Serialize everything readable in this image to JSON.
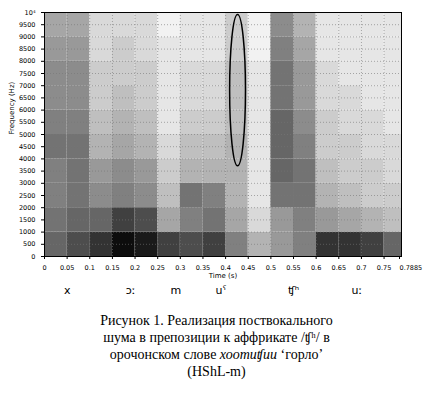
{
  "chart_data": {
    "type": "spectrogram",
    "x_label": "Time (s)",
    "y_label": "Frequency (Hz)",
    "xlim": [
      0,
      0.7885
    ],
    "ylim": [
      0,
      10000
    ],
    "xticks": [
      0,
      0.05,
      0.1,
      0.15,
      0.2,
      0.25,
      0.3,
      0.35,
      0.4,
      0.45,
      0.5,
      0.55,
      0.6,
      0.65,
      0.7,
      0.75,
      0.7885
    ],
    "yticks": [
      0,
      500,
      1000,
      1500,
      2000,
      2500,
      3000,
      3500,
      4000,
      4500,
      5000,
      5500,
      6000,
      6500,
      7000,
      7500,
      8000,
      8500,
      9000,
      9500,
      {
        "value": 10000,
        "label": "10⁴"
      }
    ],
    "grid": true,
    "time_bins": [
      0,
      0.05,
      0.1,
      0.15,
      0.2,
      0.25,
      0.3,
      0.35,
      0.4,
      0.45,
      0.5,
      0.55,
      0.6,
      0.65,
      0.7,
      0.75,
      0.7885
    ],
    "frequency_bins": [
      0,
      1000,
      2000,
      3000,
      4000,
      5000,
      6000,
      7000,
      8000,
      9000,
      10000
    ],
    "intensity_range": [
      0,
      1
    ],
    "intensity": [
      [
        0.6,
        0.7,
        0.8,
        0.95,
        0.9,
        0.75,
        0.7,
        0.75,
        0.5,
        0.3,
        0.4,
        0.5,
        0.8,
        0.8,
        0.75,
        0.6
      ],
      [
        0.55,
        0.6,
        0.6,
        0.75,
        0.7,
        0.35,
        0.5,
        0.55,
        0.35,
        0.15,
        0.4,
        0.5,
        0.4,
        0.35,
        0.3,
        0.25
      ],
      [
        0.5,
        0.55,
        0.45,
        0.5,
        0.45,
        0.25,
        0.55,
        0.5,
        0.3,
        0.1,
        0.55,
        0.55,
        0.3,
        0.25,
        0.2,
        0.2
      ],
      [
        0.5,
        0.55,
        0.4,
        0.45,
        0.4,
        0.2,
        0.3,
        0.3,
        0.3,
        0.1,
        0.6,
        0.55,
        0.25,
        0.2,
        0.2,
        0.15
      ],
      [
        0.55,
        0.55,
        0.3,
        0.35,
        0.3,
        0.15,
        0.25,
        0.25,
        0.3,
        0.1,
        0.6,
        0.5,
        0.2,
        0.2,
        0.15,
        0.15
      ],
      [
        0.5,
        0.5,
        0.25,
        0.3,
        0.25,
        0.1,
        0.2,
        0.2,
        0.25,
        0.1,
        0.6,
        0.45,
        0.2,
        0.15,
        0.15,
        0.1
      ],
      [
        0.45,
        0.45,
        0.2,
        0.25,
        0.2,
        0.1,
        0.15,
        0.15,
        0.25,
        0.1,
        0.55,
        0.4,
        0.15,
        0.15,
        0.1,
        0.1
      ],
      [
        0.45,
        0.45,
        0.2,
        0.2,
        0.2,
        0.1,
        0.15,
        0.15,
        0.25,
        0.1,
        0.55,
        0.4,
        0.15,
        0.1,
        0.1,
        0.1
      ],
      [
        0.4,
        0.4,
        0.15,
        0.2,
        0.15,
        0.1,
        0.1,
        0.1,
        0.2,
        0.05,
        0.5,
        0.35,
        0.1,
        0.1,
        0.1,
        0.1
      ],
      [
        0.35,
        0.35,
        0.15,
        0.15,
        0.15,
        0.05,
        0.1,
        0.1,
        0.2,
        0.05,
        0.45,
        0.3,
        0.1,
        0.1,
        0.1,
        0.1
      ]
    ],
    "segments": [
      {
        "label": "x",
        "time": 0.05
      },
      {
        "label": "ɔː",
        "time": 0.19
      },
      {
        "label": "m",
        "time": 0.29
      },
      {
        "label": "uˁ",
        "time": 0.39
      },
      {
        "label": "ʧʰ",
        "time": 0.55
      },
      {
        "label": "uː",
        "time": 0.69
      }
    ],
    "highlight": {
      "time": [
        0.41,
        0.445
      ],
      "frequency": [
        3700,
        9900
      ]
    }
  },
  "caption": {
    "text": "Рисунок 1. Реализация поствокального шума в препозиции к аффрикате /ʧʰ/ в орочонском слове",
    "word": "хоотиʧии",
    "end": "‘горло’ (HShL-m)"
  }
}
